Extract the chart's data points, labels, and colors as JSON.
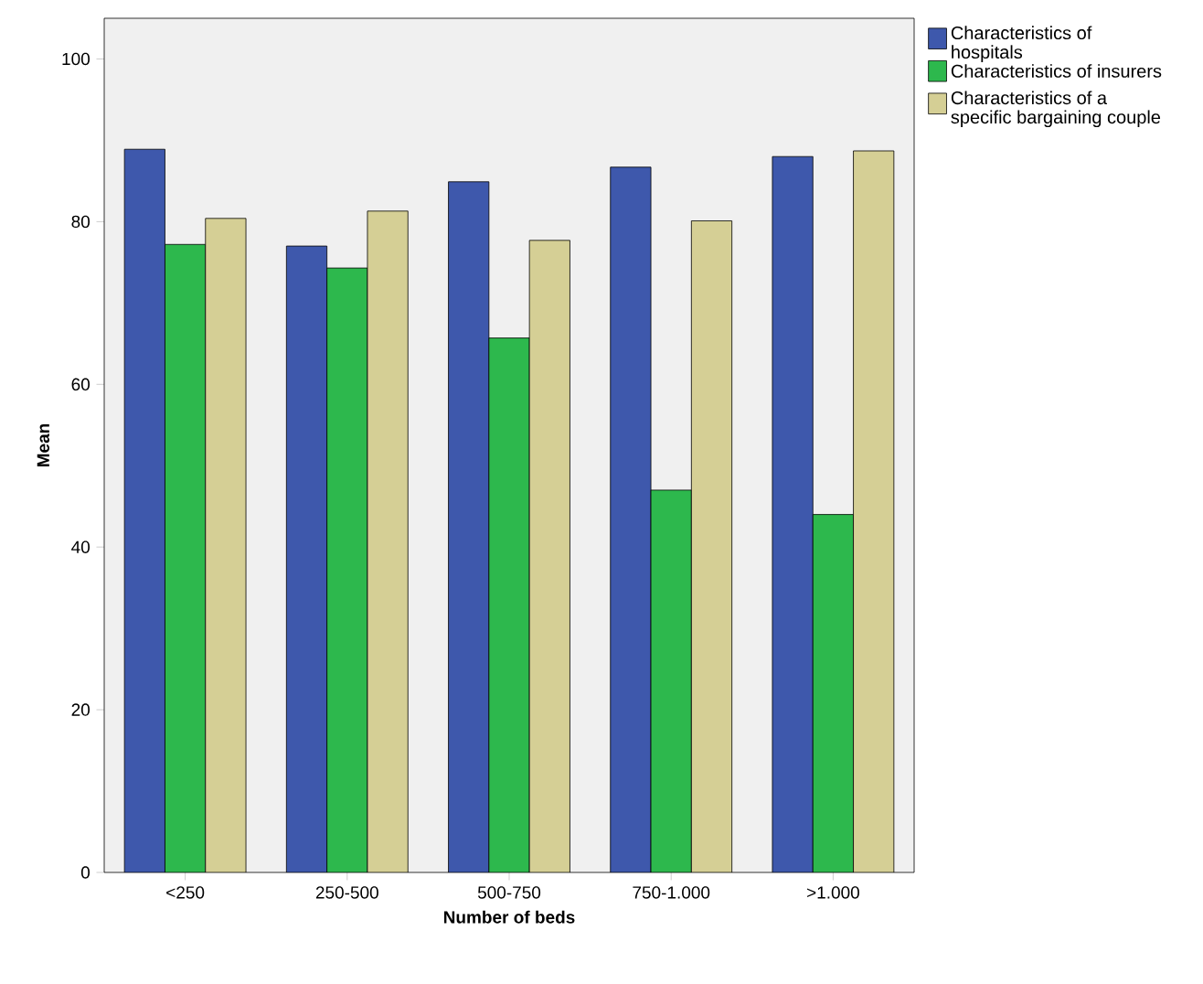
{
  "chart_data": {
    "type": "bar",
    "xlabel": "Number of beds",
    "ylabel": "Mean",
    "categories": [
      "<250",
      "250-500",
      "500-750",
      "750-1.000",
      ">1.000"
    ],
    "series": [
      {
        "name": "Characteristics of hospitals",
        "color": "#3e58ac",
        "values": [
          88.9,
          77.0,
          84.9,
          86.7,
          88.0
        ]
      },
      {
        "name": "Characteristics of insurers",
        "color": "#2db84d",
        "values": [
          77.2,
          74.3,
          65.7,
          47.0,
          44.0
        ]
      },
      {
        "name": "Characteristics of a specific bargaining couple",
        "color": "#d5cf95",
        "values": [
          80.4,
          81.3,
          77.7,
          80.1,
          88.7
        ]
      }
    ],
    "ylim": [
      0,
      105
    ],
    "yticks": [
      0,
      20,
      40,
      60,
      80,
      100
    ],
    "grid": false,
    "legend": "top right"
  }
}
